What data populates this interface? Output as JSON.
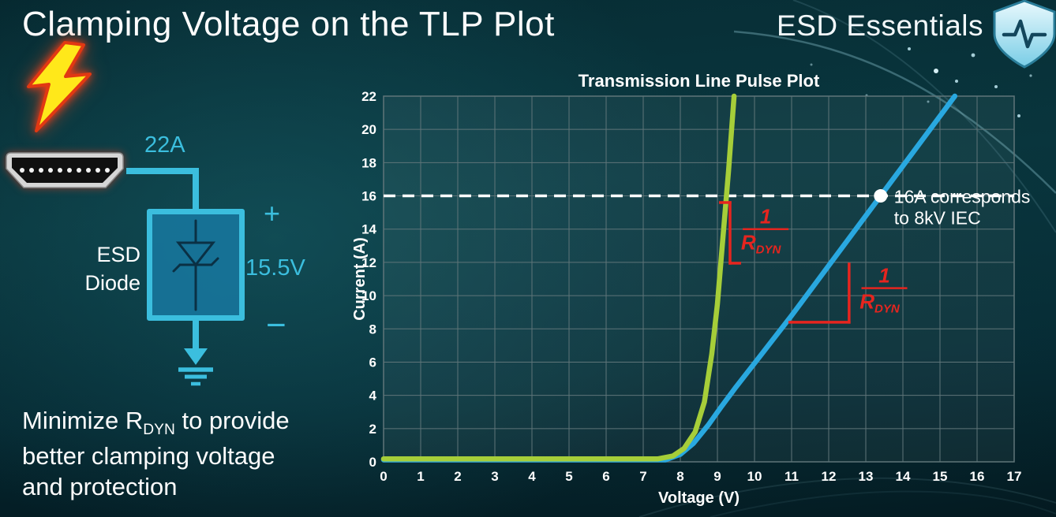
{
  "page": {
    "title": "Clamping Voltage on the TLP Plot",
    "brand": "ESD Essentials"
  },
  "colors": {
    "accent_cyan": "#3bbede",
    "annotation_red": "#e6251f",
    "curve_green": "#a6ce39",
    "curve_blue": "#29a8e0",
    "text_white": "#ffffff"
  },
  "diagram": {
    "surge_current_label": "22A",
    "clamp_voltage_label": "15.5V",
    "plus_label": "+",
    "minus_label": "−",
    "device_label_line1": "ESD",
    "device_label_line2": "Diode"
  },
  "note": {
    "line1_pre": "Minimize R",
    "line1_sub": "DYN",
    "line1_post": " to provide",
    "line2": "better clamping voltage",
    "line3": "and protection"
  },
  "chart_data": {
    "type": "line",
    "title": "Transmission Line Pulse Plot",
    "xlabel": "Voltage (V)",
    "ylabel": "Current (A)",
    "xlim": [
      0,
      17
    ],
    "ylim": [
      0,
      22
    ],
    "x_ticks": [
      0,
      1,
      2,
      3,
      4,
      5,
      6,
      7,
      8,
      9,
      10,
      11,
      12,
      13,
      14,
      15,
      16,
      17
    ],
    "y_ticks": [
      0,
      2,
      4,
      6,
      8,
      10,
      12,
      14,
      16,
      18,
      20,
      22
    ],
    "grid": true,
    "grid_color": "#5f7579",
    "series": [
      {
        "name": "blue",
        "color": "#29a8e0",
        "points": [
          [
            0,
            0.12
          ],
          [
            7.6,
            0.12
          ],
          [
            8.0,
            0.45
          ],
          [
            8.35,
            1.1
          ],
          [
            8.75,
            2.2
          ],
          [
            9.1,
            3.3
          ],
          [
            9.5,
            4.5
          ],
          [
            10.2,
            6.5
          ],
          [
            11.0,
            8.8
          ],
          [
            12.0,
            11.8
          ],
          [
            13.4,
            16.0
          ],
          [
            15.4,
            22.0
          ]
        ]
      },
      {
        "name": "green",
        "color": "#a6ce39",
        "points": [
          [
            0,
            0.18
          ],
          [
            7.4,
            0.18
          ],
          [
            7.8,
            0.35
          ],
          [
            8.1,
            0.8
          ],
          [
            8.4,
            1.8
          ],
          [
            8.65,
            3.6
          ],
          [
            8.85,
            6.5
          ],
          [
            9.0,
            9.5
          ],
          [
            9.15,
            13.5
          ],
          [
            9.3,
            17.5
          ],
          [
            9.45,
            22.0
          ]
        ]
      }
    ],
    "threshold": {
      "y": 16,
      "style": "dashed-white",
      "marker": {
        "x": 13.4,
        "y": 16
      },
      "label_line1": "16A corresponds",
      "label_line2": "to 8kV IEC"
    },
    "slope_annotations": [
      {
        "numerator": "1",
        "denominator_base": "R",
        "denominator_sub": "DYN",
        "color": "#e6251f",
        "segments": [
          [
            9.08,
            15.6,
            9.34,
            15.6
          ],
          [
            9.34,
            15.6,
            9.34,
            11.95
          ],
          [
            9.34,
            11.95,
            9.6,
            11.95
          ]
        ],
        "frac_center": [
          10.3,
          14.0
        ]
      },
      {
        "numerator": "1",
        "denominator_base": "R",
        "denominator_sub": "DYN",
        "color": "#e6251f",
        "segments": [
          [
            10.95,
            8.4,
            12.55,
            8.4
          ],
          [
            12.55,
            8.4,
            12.55,
            11.9
          ]
        ],
        "frac_center": [
          13.5,
          10.45
        ]
      }
    ]
  }
}
